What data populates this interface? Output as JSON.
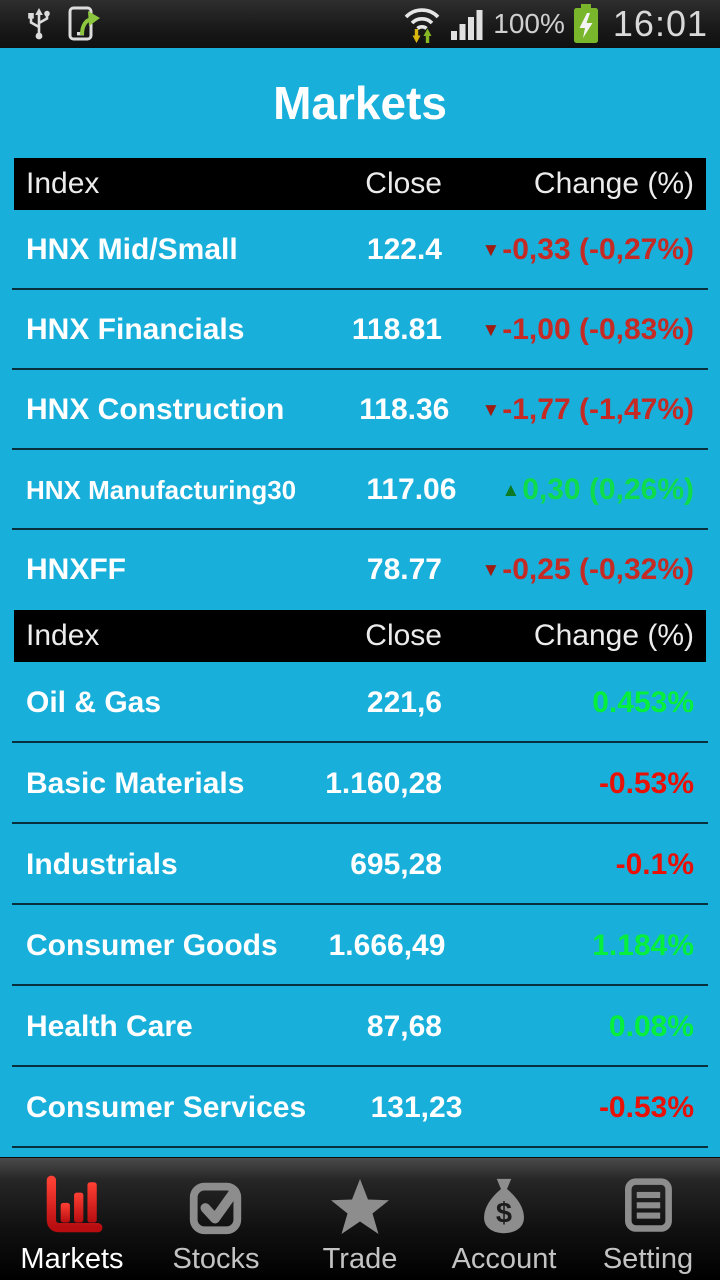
{
  "status_bar": {
    "left_icons": [
      "usb-icon",
      "phone-sync-icon"
    ],
    "right_icons": [
      "wifi-traffic-icon",
      "signal-strength-icon",
      "battery-charging-icon"
    ],
    "battery_percent": "100%",
    "time": "16:01"
  },
  "header": {
    "title": "Markets"
  },
  "colors": {
    "background": "#18AFDB",
    "table_header_bg": "#000000",
    "row_text": "#ffffff",
    "dark_red": "#C62A24",
    "mid_green": "#0EDC4B",
    "bright_red": "#E91106",
    "bright_green": "#05EF3C",
    "arrow_down": "#9C1D14",
    "arrow_up": "#0C7A22"
  },
  "tables": [
    {
      "columns": [
        "Index",
        "Close",
        "Change (%)"
      ],
      "rows": [
        {
          "name": "HNX Mid/Small",
          "close": "122.4",
          "change": "-0,33 (-0,27%)",
          "arrow": "down",
          "change_color": "#C62A24",
          "arrow_color": "#9C1D14",
          "divider": true
        },
        {
          "name": "HNX Financials",
          "close": "118.81",
          "change": "-1,00 (-0,83%)",
          "arrow": "down",
          "change_color": "#C62A24",
          "arrow_color": "#9C1D14",
          "divider": true
        },
        {
          "name": "HNX Construction",
          "close": "118.36",
          "change": "-1,77 (-1,47%)",
          "arrow": "down",
          "change_color": "#C62A24",
          "arrow_color": "#9C1D14",
          "divider": true
        },
        {
          "name": "HNX Manufacturing30",
          "close": "117.06",
          "change": "0,30 (0,26%)",
          "arrow": "up",
          "change_color": "#0EDC4B",
          "arrow_color": "#0C7A22",
          "divider": true,
          "name_small": true
        },
        {
          "name": "HNXFF",
          "close": "78.77",
          "change": "-0,25 (-0,32%)",
          "arrow": "down",
          "change_color": "#C62A24",
          "arrow_color": "#9C1D14",
          "divider": false
        }
      ]
    },
    {
      "columns": [
        "Index",
        "Close",
        "Change (%)"
      ],
      "rows": [
        {
          "name": "Oil & Gas",
          "close": "221,6",
          "change": "0.453%",
          "change_color": "#05EF3C",
          "divider": true
        },
        {
          "name": "Basic Materials",
          "close": "1.160,28",
          "change": "-0.53%",
          "change_color": "#E91106",
          "divider": true
        },
        {
          "name": "Industrials",
          "close": "695,28",
          "change": "-0.1%",
          "change_color": "#E91106",
          "divider": true
        },
        {
          "name": "Consumer Goods",
          "close": "1.666,49",
          "change": "1.184%",
          "change_color": "#05EF3C",
          "divider": true
        },
        {
          "name": "Health Care",
          "close": "87,68",
          "change": "0.08%",
          "change_color": "#05EF3C",
          "divider": true
        },
        {
          "name": "Consumer Services",
          "close": "131,23",
          "change": "-0.53%",
          "change_color": "#E91106",
          "divider": true
        }
      ]
    }
  ],
  "nav": {
    "items": [
      {
        "label": "Markets",
        "icon": "bar-chart-icon",
        "active": true
      },
      {
        "label": "Stocks",
        "icon": "check-icon",
        "active": false
      },
      {
        "label": "Trade",
        "icon": "star-icon",
        "active": false
      },
      {
        "label": "Account",
        "icon": "money-bag-icon",
        "active": false
      },
      {
        "label": "Setting",
        "icon": "list-icon",
        "active": false
      }
    ]
  }
}
